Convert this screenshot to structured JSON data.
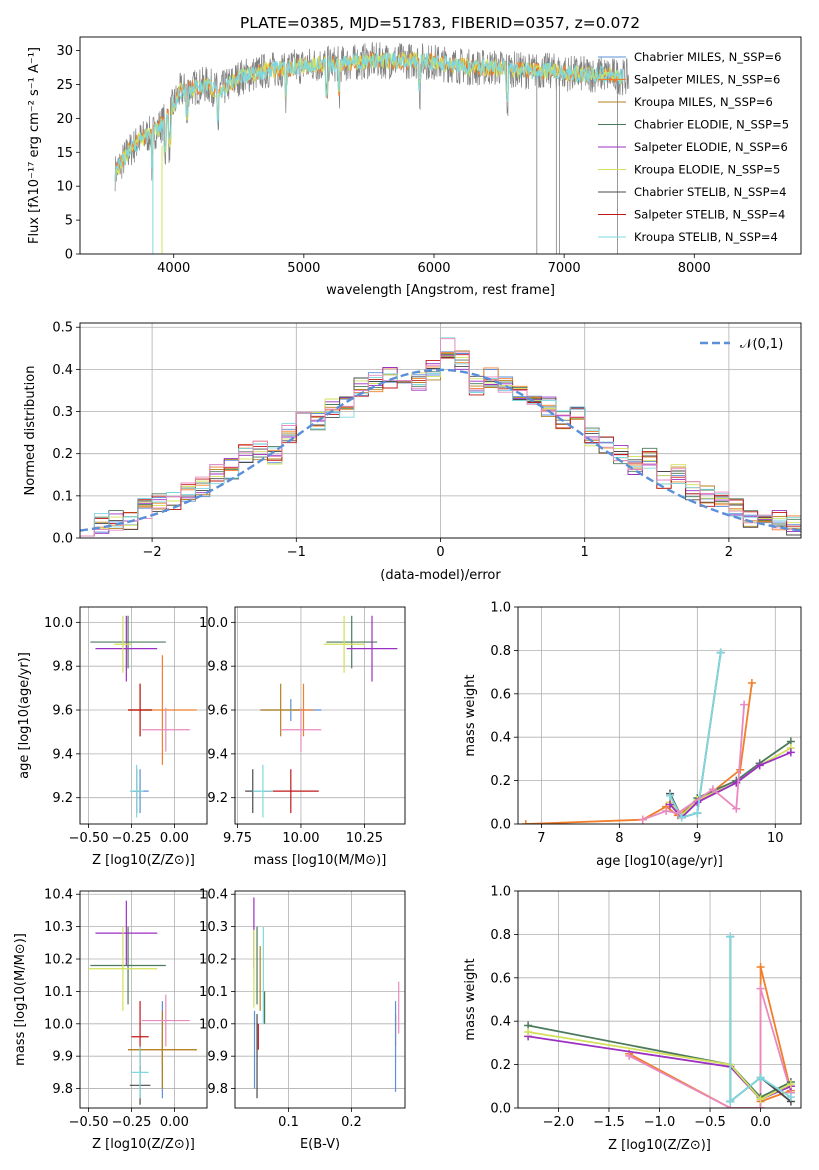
{
  "title": "PLATE=0385, MJD=51783, FIBERID=0357, z=0.072",
  "colors": {
    "Chabrier MILES": "#5b8fd8",
    "Salpeter MILES": "#f07e2b",
    "Kroupa MILES": "#b5821e",
    "Chabrier ELODIE": "#4d7a5c",
    "Salpeter ELODIE": "#9b30c3",
    "Kroupa ELODIE": "#d2e05a",
    "Chabrier STELIB": "#4a4a4a",
    "Salpeter STELIB": "#c01818",
    "Kroupa STELIB": "#7fd8df",
    "pink": "#e88ac0",
    "gaussian": "#5b8fd8"
  },
  "chart_data": [
    {
      "type": "line",
      "title": "PLATE=0385, MJD=51783, FIBERID=0357, z=0.072",
      "xlabel": "wavelength [Angstrom, rest frame]",
      "ylabel": "Flux [fλ10⁻¹⁷ erg cm⁻² s⁻¹ A⁻¹]",
      "xlim": [
        3280,
        8820
      ],
      "ylim": [
        0,
        32
      ],
      "xticks": [
        "4000",
        "5000",
        "6000",
        "7000",
        "8000"
      ],
      "yticks": [
        "0",
        "5",
        "10",
        "15",
        "20",
        "25",
        "30"
      ],
      "legend_position": "right",
      "legend": [
        "Chabrier MILES, N_SSP=6",
        "Salpeter MILES, N_SSP=6",
        "Kroupa MILES, N_SSP=6",
        "Chabrier ELODIE, N_SSP=5",
        "Salpeter ELODIE, N_SSP=6",
        "Kroupa ELODIE, N_SSP=5",
        "Chabrier STELIB, N_SSP=4",
        "Salpeter STELIB, N_SSP=4",
        "Kroupa STELIB, N_SSP=4"
      ],
      "continuum": {
        "x": [
          3550,
          3650,
          3750,
          3850,
          3950,
          4050,
          4150,
          4250,
          4350,
          4500,
          4700,
          4900,
          5100,
          5300,
          5500,
          5700,
          5900,
          6100,
          6300,
          6500,
          6700,
          6900,
          7100,
          7300,
          7500
        ],
        "y": [
          12,
          15,
          17,
          18,
          20,
          24,
          24.5,
          25,
          24,
          26,
          27,
          27.5,
          28,
          28,
          28.5,
          28.5,
          28.5,
          28,
          27.5,
          27.5,
          27,
          27,
          26.5,
          26.5,
          26
        ]
      },
      "data_drops": [
        {
          "x": 6790,
          "y": 0
        },
        {
          "x": 6940,
          "y": 0
        },
        {
          "x": 6965,
          "y": 0
        },
        {
          "x": 7410,
          "y": 0
        }
      ]
    },
    {
      "type": "line",
      "xlabel": "(data-model)/error",
      "ylabel": "Normed distribution",
      "xlim": [
        -2.5,
        2.5
      ],
      "ylim": [
        0,
        0.51
      ],
      "xticks": [
        "−2",
        "−1",
        "0",
        "1",
        "2"
      ],
      "yticks": [
        "0.0",
        "0.1",
        "0.2",
        "0.3",
        "0.4",
        "0.5"
      ],
      "grid": true,
      "legend_position": "top-right",
      "gaussian_label": "𝒩(0,1)",
      "bin_centers": [
        -2.45,
        -2.35,
        -2.25,
        -2.15,
        -2.05,
        -1.95,
        -1.85,
        -1.75,
        -1.65,
        -1.55,
        -1.45,
        -1.35,
        -1.25,
        -1.15,
        -1.05,
        -0.95,
        -0.85,
        -0.75,
        -0.65,
        -0.55,
        -0.45,
        -0.35,
        -0.25,
        -0.15,
        -0.05,
        0.05,
        0.15,
        0.25,
        0.35,
        0.45,
        0.55,
        0.65,
        0.75,
        0.85,
        0.95,
        1.05,
        1.15,
        1.25,
        1.35,
        1.45,
        1.55,
        1.65,
        1.75,
        1.85,
        1.95,
        2.05,
        2.15,
        2.25,
        2.35,
        2.45
      ],
      "histogram_mean": [
        0.025,
        0.035,
        0.042,
        0.045,
        0.07,
        0.082,
        0.09,
        0.11,
        0.12,
        0.15,
        0.165,
        0.2,
        0.21,
        0.2,
        0.25,
        0.3,
        0.28,
        0.31,
        0.31,
        0.36,
        0.37,
        0.38,
        0.38,
        0.37,
        0.4,
        0.45,
        0.42,
        0.36,
        0.38,
        0.37,
        0.35,
        0.33,
        0.31,
        0.28,
        0.29,
        0.24,
        0.22,
        0.2,
        0.17,
        0.19,
        0.14,
        0.15,
        0.11,
        0.1,
        0.09,
        0.07,
        0.05,
        0.04,
        0.04,
        0.03
      ]
    },
    {
      "type": "scatter",
      "xlabel": "Z [log10(Z/Z⊙)]",
      "ylabel": "age  [log10(age/yr)]",
      "xlim": [
        -0.55,
        0.19
      ],
      "ylim": [
        9.08,
        10.07
      ],
      "xticks": [
        "−0.50",
        "−0.25",
        "0.00"
      ],
      "yticks": [
        "9.2",
        "9.4",
        "9.6",
        "9.8",
        "10.0"
      ],
      "points": [
        {
          "series": "Chabrier MILES",
          "x": -0.2,
          "y": 9.23,
          "xerr": 0.05,
          "yerr": 0.1
        },
        {
          "series": "Salpeter MILES",
          "x": -0.07,
          "y": 9.6,
          "xerr": 0.2,
          "yerr": 0.25
        },
        {
          "series": "Kroupa MILES",
          "x": -0.2,
          "y": 9.6,
          "xerr": 0.07,
          "yerr": 0.12
        },
        {
          "series": "Chabrier ELODIE",
          "x": -0.27,
          "y": 9.91,
          "xerr": 0.22,
          "yerr": 0.12
        },
        {
          "series": "Salpeter ELODIE",
          "x": -0.28,
          "y": 9.88,
          "xerr": 0.18,
          "yerr": 0.15
        },
        {
          "series": "Kroupa ELODIE",
          "x": -0.3,
          "y": 9.9,
          "xerr": 0.05,
          "yerr": 0.13
        },
        {
          "series": "Chabrier STELIB",
          "x": -0.22,
          "y": 9.23,
          "xerr": 0.02,
          "yerr": 0.1
        },
        {
          "series": "Salpeter STELIB",
          "x": -0.2,
          "y": 9.6,
          "xerr": 0.07,
          "yerr": 0.12
        },
        {
          "series": "Kroupa STELIB",
          "x": -0.22,
          "y": 9.23,
          "xerr": 0.04,
          "yerr": 0.12
        },
        {
          "series": "pink",
          "x": -0.05,
          "y": 9.51,
          "xerr": 0.14,
          "yerr": 0.1
        }
      ]
    },
    {
      "type": "scatter",
      "xlabel": "mass [log10(M/M⊙)]",
      "ylabel": "",
      "xlim": [
        9.74,
        10.41
      ],
      "ylim": [
        9.08,
        10.07
      ],
      "xticks": [
        "9.75",
        "10.00",
        "10.25"
      ],
      "yticks": [
        "9.2",
        "9.4",
        "9.6",
        "9.8",
        "10.0"
      ],
      "points": [
        {
          "series": "Chabrier MILES",
          "x": 9.96,
          "y": 9.6,
          "xerr": 0.12,
          "yerr": 0.05
        },
        {
          "series": "Salpeter MILES",
          "x": 10.01,
          "y": 9.6,
          "xerr": 0.04,
          "yerr": 0.12
        },
        {
          "series": "Kroupa MILES",
          "x": 9.92,
          "y": 9.6,
          "xerr": 0.08,
          "yerr": 0.12
        },
        {
          "series": "Chabrier ELODIE",
          "x": 10.2,
          "y": 9.91,
          "xerr": 0.1,
          "yerr": 0.12
        },
        {
          "series": "Salpeter ELODIE",
          "x": 10.28,
          "y": 9.88,
          "xerr": 0.1,
          "yerr": 0.15
        },
        {
          "series": "Kroupa ELODIE",
          "x": 10.17,
          "y": 9.9,
          "xerr": 0.08,
          "yerr": 0.13
        },
        {
          "series": "Chabrier STELIB",
          "x": 9.81,
          "y": 9.23,
          "xerr": 0.03,
          "yerr": 0.1
        },
        {
          "series": "Salpeter STELIB",
          "x": 9.96,
          "y": 9.23,
          "xerr": 0.11,
          "yerr": 0.1
        },
        {
          "series": "Kroupa STELIB",
          "x": 9.85,
          "y": 9.23,
          "xerr": 0.04,
          "yerr": 0.12
        },
        {
          "series": "pink",
          "x": 10.0,
          "y": 9.51,
          "xerr": 0.08,
          "yerr": 0.1
        }
      ]
    },
    {
      "type": "line",
      "xlabel": "age  [log10(age/yr)]",
      "ylabel": "mass weight",
      "xlim": [
        6.7,
        10.33
      ],
      "ylim": [
        0,
        1.0
      ],
      "xticks": [
        "7",
        "8",
        "9",
        "10"
      ],
      "yticks": [
        "0.0",
        "0.2",
        "0.4",
        "0.6",
        "0.8",
        "1.0"
      ],
      "grid": true,
      "series": [
        {
          "name": "Salpeter MILES",
          "x": [
            6.8,
            8.3,
            8.6,
            8.75,
            9.2,
            9.55,
            9.7
          ],
          "y": [
            0.0,
            0.02,
            0.08,
            0.04,
            0.15,
            0.25,
            0.65
          ]
        },
        {
          "name": "Chabrier STELIB",
          "x": [
            8.65,
            8.8,
            9.0,
            9.3
          ],
          "y": [
            0.14,
            0.03,
            0.05,
            0.79
          ]
        },
        {
          "name": "Chabrier ELODIE",
          "x": [
            8.65,
            8.8,
            9.0,
            9.5,
            9.8,
            10.2
          ],
          "y": [
            0.1,
            0.04,
            0.12,
            0.2,
            0.28,
            0.38
          ]
        },
        {
          "name": "Kroupa ELODIE",
          "x": [
            8.65,
            8.8,
            9.0,
            9.5,
            9.8,
            10.2
          ],
          "y": [
            0.1,
            0.04,
            0.11,
            0.19,
            0.27,
            0.35
          ]
        },
        {
          "name": "Salpeter ELODIE",
          "x": [
            8.65,
            8.8,
            9.0,
            9.5,
            9.8,
            10.2
          ],
          "y": [
            0.09,
            0.03,
            0.1,
            0.19,
            0.27,
            0.33
          ]
        },
        {
          "name": "Kroupa STELIB",
          "x": [
            8.65,
            8.8,
            9.0,
            9.3
          ],
          "y": [
            0.13,
            0.03,
            0.05,
            0.79
          ]
        },
        {
          "name": "pink",
          "x": [
            8.3,
            8.6,
            8.75,
            9.2,
            9.5,
            9.6
          ],
          "y": [
            0.02,
            0.06,
            0.05,
            0.16,
            0.07,
            0.55
          ]
        }
      ]
    },
    {
      "type": "scatter",
      "xlabel": "Z [log10(Z/Z⊙)]",
      "ylabel": "mass [log10(M/M⊙)]",
      "xlim": [
        -0.55,
        0.19
      ],
      "ylim": [
        9.74,
        10.41
      ],
      "xticks": [
        "−0.50",
        "−0.25",
        "0.00"
      ],
      "yticks": [
        "9.8",
        "9.9",
        "10.0",
        "10.1",
        "10.2",
        "10.3",
        "10.4"
      ],
      "points": [
        {
          "series": "Chabrier MILES",
          "x": -0.07,
          "y": 9.92,
          "xerr": 0.2,
          "yerr": 0.15
        },
        {
          "series": "Salpeter MILES",
          "x": -0.07,
          "y": 9.92,
          "xerr": 0.2,
          "yerr": 0.05
        },
        {
          "series": "Kroupa MILES",
          "x": -0.07,
          "y": 9.92,
          "xerr": 0.2,
          "yerr": 0.12
        },
        {
          "series": "Chabrier ELODIE",
          "x": -0.27,
          "y": 10.18,
          "xerr": 0.22,
          "yerr": 0.12
        },
        {
          "series": "Salpeter ELODIE",
          "x": -0.28,
          "y": 10.28,
          "xerr": 0.18,
          "yerr": 0.1
        },
        {
          "series": "Kroupa ELODIE",
          "x": -0.3,
          "y": 10.17,
          "xerr": 0.2,
          "yerr": 0.13
        },
        {
          "series": "Chabrier STELIB",
          "x": -0.2,
          "y": 9.81,
          "xerr": 0.06,
          "yerr": 0.06
        },
        {
          "series": "Salpeter STELIB",
          "x": -0.2,
          "y": 9.96,
          "xerr": 0.05,
          "yerr": 0.11
        },
        {
          "series": "Kroupa STELIB",
          "x": -0.2,
          "y": 9.85,
          "xerr": 0.05,
          "yerr": 0.08
        },
        {
          "series": "pink",
          "x": -0.05,
          "y": 10.01,
          "xerr": 0.14,
          "yerr": 0.08
        }
      ]
    },
    {
      "type": "scatter",
      "xlabel": "E(B-V)",
      "ylabel": "",
      "xlim": [
        0.015,
        0.285
      ],
      "ylim": [
        9.74,
        10.41
      ],
      "xticks": [
        "0.1",
        "0.2"
      ],
      "yticks": [
        "9.8",
        "9.9",
        "10.0",
        "10.1",
        "10.2",
        "10.3",
        "10.4"
      ],
      "points": [
        {
          "series": "Salpeter ELODIE",
          "x": 0.045,
          "y": 10.28,
          "xerr": 0,
          "yerr": 0.11
        },
        {
          "series": "Kroupa ELODIE",
          "x": 0.045,
          "y": 10.17,
          "xerr": 0,
          "yerr": 0.12
        },
        {
          "series": "Chabrier MILES",
          "x": 0.046,
          "y": 9.92,
          "xerr": 0,
          "yerr": 0.12
        },
        {
          "series": "Chabrier ELODIE",
          "x": 0.05,
          "y": 10.18,
          "xerr": 0,
          "yerr": 0.12
        },
        {
          "series": "Chabrier STELIB",
          "x": 0.05,
          "y": 9.9,
          "xerr": 0,
          "yerr": 0.13
        },
        {
          "series": "Salpeter STELIB",
          "x": 0.052,
          "y": 9.96,
          "xerr": 0,
          "yerr": 0.04
        },
        {
          "series": "Kroupa MILES",
          "x": 0.055,
          "y": 10.14,
          "xerr": 0,
          "yerr": 0.1
        },
        {
          "series": "Kroupa STELIB",
          "x": 0.06,
          "y": 10.15,
          "xerr": 0,
          "yerr": 0.15
        },
        {
          "series": "Chabrier ELODIE",
          "x": 0.062,
          "y": 10.05,
          "xerr": 0,
          "yerr": 0.05
        },
        {
          "series": "pink",
          "x": 0.275,
          "y": 10.05,
          "xerr": 0,
          "yerr": 0.08
        },
        {
          "series": "Salpeter MILES",
          "x": 0.27,
          "y": 9.98,
          "xerr": 0,
          "yerr": 0.05
        },
        {
          "series": "Chabrier MILES",
          "x": 0.27,
          "y": 9.93,
          "xerr": 0,
          "yerr": 0.14
        }
      ]
    },
    {
      "type": "line",
      "xlabel": "Z [log10(Z/Z⊙)]",
      "ylabel": "mass weight",
      "xlim": [
        -2.4,
        0.4
      ],
      "ylim": [
        0,
        1.0
      ],
      "xticks": [
        "−2.0",
        "−1.5",
        "−1.0",
        "−0.5",
        "0.0"
      ],
      "yticks": [
        "0.0",
        "0.2",
        "0.4",
        "0.6",
        "0.8",
        "1.0"
      ],
      "grid": true,
      "series": [
        {
          "name": "Salpeter MILES",
          "x": [
            -1.3,
            -0.3,
            0.0,
            0.0,
            0.3,
            0.0
          ],
          "y": [
            0.25,
            0.0,
            0.0,
            0.65,
            0.08,
            0.03
          ]
        },
        {
          "name": "pink",
          "x": [
            -1.3,
            -0.3,
            0.0,
            0.0,
            0.3
          ],
          "y": [
            0.24,
            0.0,
            0.0,
            0.55,
            0.07
          ]
        },
        {
          "name": "Chabrier ELODIE",
          "x": [
            -2.3,
            -0.3,
            0.0,
            0.3
          ],
          "y": [
            0.38,
            0.2,
            0.05,
            0.12
          ]
        },
        {
          "name": "Salpeter ELODIE",
          "x": [
            -2.3,
            -0.3,
            0.0,
            0.3
          ],
          "y": [
            0.33,
            0.19,
            0.04,
            0.1
          ]
        },
        {
          "name": "Kroupa ELODIE",
          "x": [
            -2.3,
            -0.3,
            0.0,
            0.3
          ],
          "y": [
            0.35,
            0.2,
            0.04,
            0.11
          ]
        },
        {
          "name": "Chabrier STELIB",
          "x": [
            -0.3,
            -0.3,
            0.0,
            0.3
          ],
          "y": [
            0.79,
            0.03,
            0.14,
            0.03
          ]
        },
        {
          "name": "Kroupa STELIB",
          "x": [
            -0.3,
            -0.3,
            0.0,
            0.3
          ],
          "y": [
            0.79,
            0.03,
            0.14,
            0.05
          ]
        }
      ]
    }
  ]
}
